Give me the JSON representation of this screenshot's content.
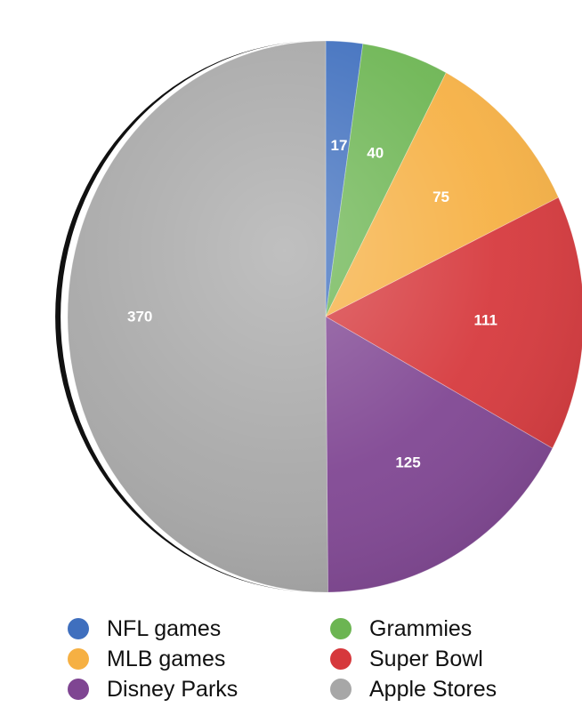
{
  "chart_data": {
    "type": "pie",
    "title": "",
    "slices": [
      {
        "label": "NFL games",
        "value": 17,
        "value_label": "17",
        "color": "#3f6fbe"
      },
      {
        "label": "Grammies",
        "value": 40,
        "value_label": "40",
        "color": "#6cb552"
      },
      {
        "label": "MLB games",
        "value": 75,
        "value_label": "75",
        "color": "#f6b043"
      },
      {
        "label": "Super Bowl",
        "value": 111,
        "value_label": "111",
        "color": "#d6383c"
      },
      {
        "label": "Disney Parks",
        "value": 125,
        "value_label": "125",
        "color": "#7f4592"
      },
      {
        "label": "Apple Stores",
        "value": 370,
        "value_label": "370",
        "color": "#a7a7a7"
      }
    ],
    "start_angle": "12 o'clock",
    "direction": "clockwise",
    "legend": {
      "placement": "bottom",
      "columns": 2,
      "items": [
        {
          "label": "NFL games",
          "color": "#3f6fbe"
        },
        {
          "label": "Grammies",
          "color": "#6cb552"
        },
        {
          "label": "MLB games",
          "color": "#f6b043"
        },
        {
          "label": "Super Bowl",
          "color": "#d6383c"
        },
        {
          "label": "Disney Parks",
          "color": "#7f4592"
        },
        {
          "label": "Apple Stores",
          "color": "#a7a7a7"
        }
      ]
    }
  }
}
